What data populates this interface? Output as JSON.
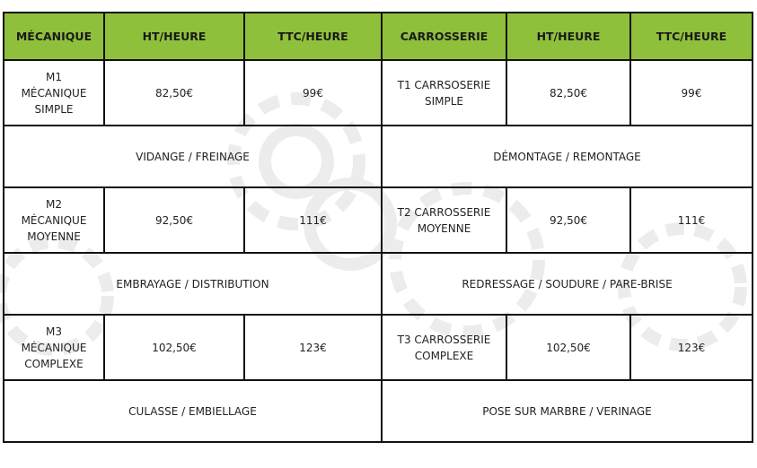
{
  "colors": {
    "header": "#8fc03c",
    "border": "#111111"
  },
  "headers": [
    "MÉCANIQUE",
    "HT/HEURE",
    "TTC/HEURE",
    "CARROSSERIE",
    "HT/HEURE",
    "TTC/HEURE"
  ],
  "rows": [
    {
      "mec": "M1\nMÉCANIQUE\nSIMPLE",
      "mec_ht": "82,50€",
      "mec_ttc": "99€",
      "car": "T1 CARRSOSERIE\nSIMPLE",
      "car_ht": "82,50€",
      "car_ttc": "99€",
      "mec_work": "VIDANGE / FREINAGE",
      "car_work": "DÉMONTAGE / REMONTAGE"
    },
    {
      "mec": "M2\nMÉCANIQUE\nMOYENNE",
      "mec_ht": "92,50€",
      "mec_ttc": "111€",
      "car": "T2 CARROSSERIE\nMOYENNE",
      "car_ht": "92,50€",
      "car_ttc": "111€",
      "mec_work": "EMBRAYAGE / DISTRIBUTION",
      "car_work": "REDRESSAGE / SOUDURE / PARE-BRISE"
    },
    {
      "mec": "M3\nMÉCANIQUE\nCOMPLEXE",
      "mec_ht": "102,50€",
      "mec_ttc": "123€",
      "car": "T3 CARROSSERIE\nCOMPLEXE",
      "car_ht": "102,50€",
      "car_ttc": "123€",
      "mec_work": "CULASSE / EMBIELLAGE",
      "car_work": "POSE SUR MARBRE / VERINAGE"
    }
  ]
}
